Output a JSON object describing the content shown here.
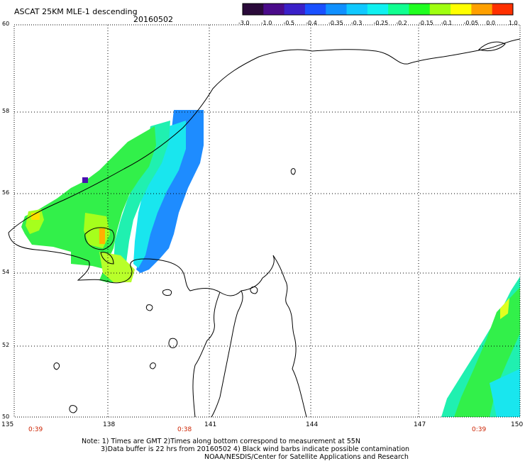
{
  "header": {
    "title": "ASCAT 25KM MLE-1 descending",
    "date": "20160502"
  },
  "colorbar": {
    "labels": [
      "-3.0",
      "-1.0",
      "-0.5",
      "-0.4",
      "-0.35",
      "-0.3",
      "-0.25",
      "-0.2",
      "-0.15",
      "-0.1",
      "-0.05",
      "0.0",
      "1.0"
    ],
    "colors": [
      "#2a0a3a",
      "#4a0b8a",
      "#3a20c8",
      "#1a50ff",
      "#1090ff",
      "#10c8ff",
      "#10f0f0",
      "#10ff90",
      "#20ff20",
      "#a0ff10",
      "#ffff00",
      "#ffa000",
      "#ff3000"
    ]
  },
  "axes": {
    "lat_labels": [
      "60",
      "58",
      "56",
      "54",
      "52",
      "50"
    ],
    "lon_labels": [
      "135",
      "138",
      "141",
      "144",
      "147",
      "150"
    ]
  },
  "time_labels": [
    "0:39",
    "0:38",
    "0:39"
  ],
  "notes": {
    "line1": "Note: 1) Times are GMT 2)Times along bottom correspond to measurement at 55N",
    "line2": "3)Data buffer is 22 hrs from 20160502 4) Black wind barbs indicate possible contamination",
    "line3": "NOAA/NESDIS/Center for Satellite Applications and Research"
  }
}
